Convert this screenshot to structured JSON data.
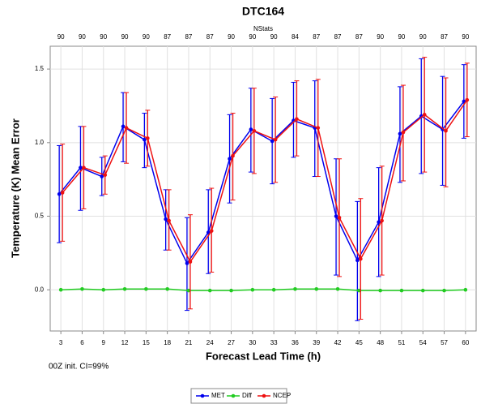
{
  "chart_data": {
    "type": "line",
    "title": "DTC164",
    "x_label": "Forecast Lead Time (h)",
    "y_label": "Temperature (K) Mean Error",
    "top_axis_label": "NStats",
    "note": "00Z init.  CI=99%",
    "categories": [
      3,
      6,
      9,
      12,
      15,
      18,
      21,
      24,
      27,
      30,
      33,
      36,
      39,
      42,
      45,
      48,
      51,
      54,
      57,
      60
    ],
    "top_axis": [
      90,
      90,
      90,
      90,
      90,
      87,
      87,
      87,
      90,
      90,
      90,
      84,
      87,
      87,
      87,
      90,
      90,
      90,
      87,
      90
    ],
    "ylim": [
      -0.28,
      1.655
    ],
    "yticks": [
      {
        "value": 0,
        "label": "0.0"
      },
      {
        "value": 0.5,
        "label": "0.5"
      },
      {
        "value": 1,
        "label": "1.0"
      },
      {
        "value": 1.5,
        "label": "1.5"
      }
    ],
    "grid": true,
    "series": [
      {
        "name": "MET",
        "color": "#0000ee",
        "values": [
          0.65,
          0.83,
          0.77,
          1.11,
          1.02,
          0.48,
          0.18,
          0.39,
          0.89,
          1.09,
          1.01,
          1.15,
          1.1,
          0.5,
          0.2,
          0.46,
          1.06,
          1.18,
          1.09,
          1.28
        ],
        "lower": [
          0.32,
          0.54,
          0.64,
          0.87,
          0.83,
          0.27,
          -0.14,
          0.11,
          0.59,
          0.8,
          0.72,
          0.9,
          0.77,
          0.1,
          -0.21,
          0.09,
          0.73,
          0.79,
          0.71,
          1.03
        ],
        "upper": [
          0.98,
          1.11,
          0.9,
          1.34,
          1.2,
          0.68,
          0.49,
          0.68,
          1.19,
          1.37,
          1.3,
          1.41,
          1.42,
          0.89,
          0.6,
          0.83,
          1.38,
          1.57,
          1.45,
          1.53
        ]
      },
      {
        "name": "Diff",
        "color": "#22cc22",
        "values": [
          0.0,
          0.005,
          0.0,
          0.005,
          0.005,
          0.005,
          -0.005,
          -0.005,
          -0.005,
          0.0,
          0.0,
          0.005,
          0.005,
          0.005,
          -0.005,
          -0.005,
          -0.005,
          -0.005,
          -0.005,
          0.0
        ]
      },
      {
        "name": "NCEP",
        "color": "#ee1111",
        "values": [
          0.66,
          0.83,
          0.78,
          1.1,
          1.03,
          0.47,
          0.19,
          0.4,
          0.91,
          1.08,
          1.02,
          1.16,
          1.1,
          0.49,
          0.21,
          0.47,
          1.07,
          1.19,
          1.08,
          1.29
        ],
        "lower": [
          0.33,
          0.55,
          0.65,
          0.86,
          0.84,
          0.27,
          -0.13,
          0.12,
          0.61,
          0.79,
          0.73,
          0.91,
          0.77,
          0.09,
          -0.2,
          0.1,
          0.74,
          0.8,
          0.7,
          1.04
        ],
        "upper": [
          0.99,
          1.11,
          0.91,
          1.34,
          1.22,
          0.68,
          0.51,
          0.69,
          1.2,
          1.37,
          1.31,
          1.42,
          1.43,
          0.89,
          0.62,
          0.84,
          1.39,
          1.58,
          1.44,
          1.54
        ]
      }
    ]
  }
}
